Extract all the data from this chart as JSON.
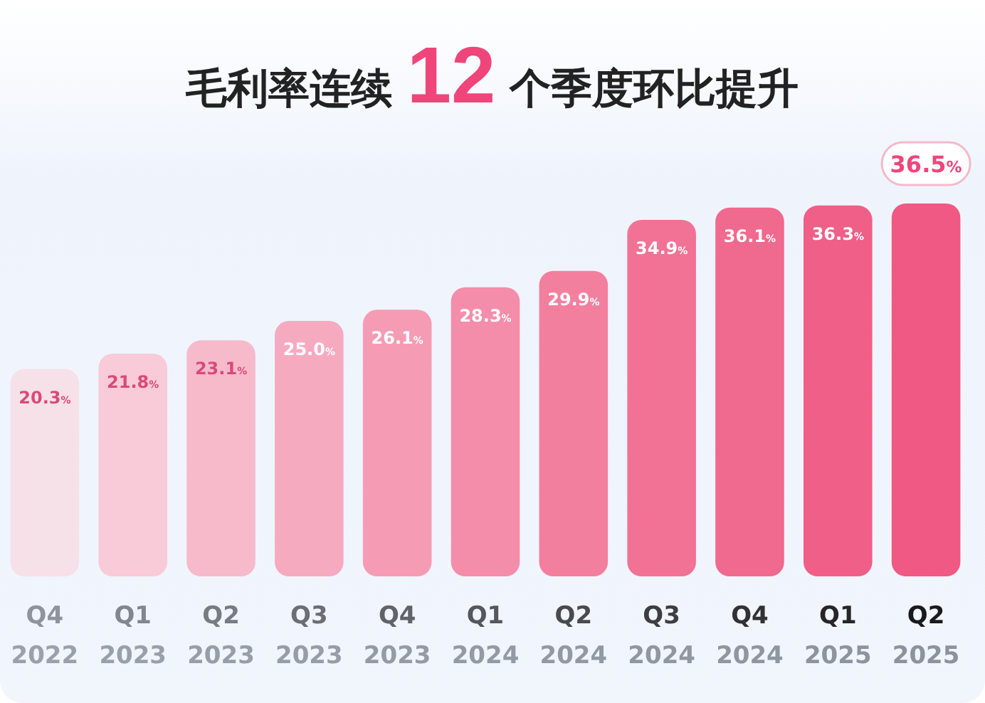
{
  "chart_data": {
    "type": "bar",
    "title": "毛利率连续 12 个季度环比提升",
    "categories": [
      "Q4 2022",
      "Q1 2023",
      "Q2 2023",
      "Q3 2023",
      "Q4 2023",
      "Q1 2024",
      "Q2 2024",
      "Q3 2024",
      "Q4 2024",
      "Q1 2025",
      "Q2 2025"
    ],
    "values": [
      20.3,
      21.8,
      23.1,
      25.0,
      26.1,
      28.3,
      29.9,
      34.9,
      36.1,
      36.3,
      36.5
    ],
    "value_labels": [
      "20.3%",
      "21.8%",
      "23.1%",
      "25.0%",
      "26.1%",
      "28.3%",
      "29.9%",
      "34.9%",
      "36.1%",
      "36.3%",
      "36.5%"
    ],
    "colors": [
      "#f7e1e8",
      "#f9cad7",
      "#f7bacb",
      "#f6aac0",
      "#f59cb4",
      "#f48daa",
      "#f37f9f",
      "#f17295",
      "#f0698e",
      "#ef5f88",
      "#ef5984"
    ],
    "relative": false
  }
}
